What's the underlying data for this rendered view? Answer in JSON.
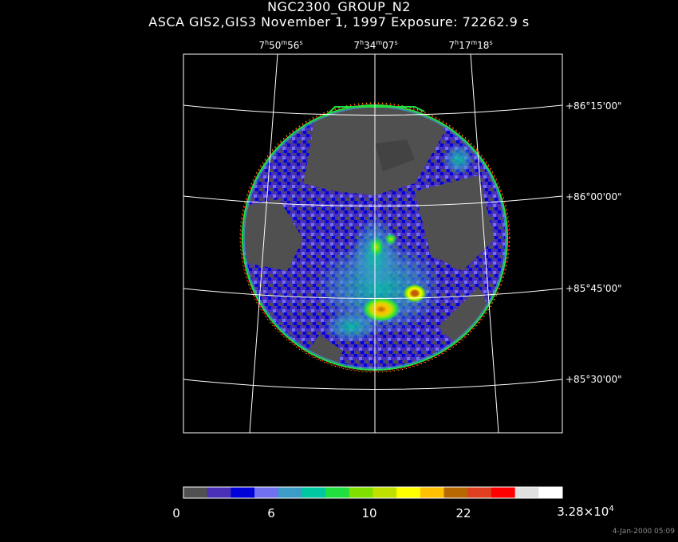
{
  "title": {
    "line1": "NGC2300_GROUP_N2",
    "line2": "ASCA GIS2,GIS3 November 1, 1997 Exposure: 72262.9 s"
  },
  "ra_labels": [
    {
      "h": "7",
      "m": "50",
      "s": "56"
    },
    {
      "h": "7",
      "m": "34",
      "s": "07"
    },
    {
      "h": "7",
      "m": "17",
      "s": "18"
    }
  ],
  "dec_labels": [
    "+86°15'00\"",
    "+86°00'00\"",
    "+85°45'00\"",
    "+85°30'00\""
  ],
  "colorbar": {
    "colors": [
      "#505050",
      "#4a2fb8",
      "#0000d8",
      "#7070f0",
      "#3c9cc8",
      "#00c8a0",
      "#20e040",
      "#80e000",
      "#c0e000",
      "#ffff00",
      "#ffc000",
      "#b86800",
      "#e04020",
      "#ff0000",
      "#e0e0e0",
      "#ffffff"
    ],
    "labels": [
      {
        "text": "0"
      },
      {
        "text": "6"
      },
      {
        "text": "10"
      },
      {
        "text": "22"
      },
      {
        "text": "3.28×10",
        "sup": "4"
      }
    ]
  },
  "footer": "4-Jan-2000 05:09"
}
